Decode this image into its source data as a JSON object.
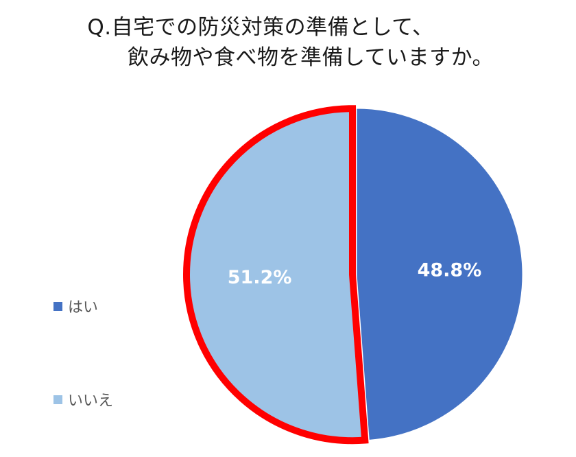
{
  "chart_data": {
    "type": "pie",
    "title_lines": [
      "Q.自宅での防災対策の準備として、",
      "飲み物や食べ物を準備していますか。"
    ],
    "slices": [
      {
        "name": "はい",
        "value": 48.8,
        "label": "48.8%",
        "color": "#4472C4"
      },
      {
        "name": "いいえ",
        "value": 51.2,
        "label": "51.2%",
        "color": "#9DC3E6",
        "highlighted": true
      }
    ],
    "highlight_color": "#FF0000",
    "start_angle_deg": 0,
    "direction": "clockwise",
    "legend_position": "left"
  }
}
